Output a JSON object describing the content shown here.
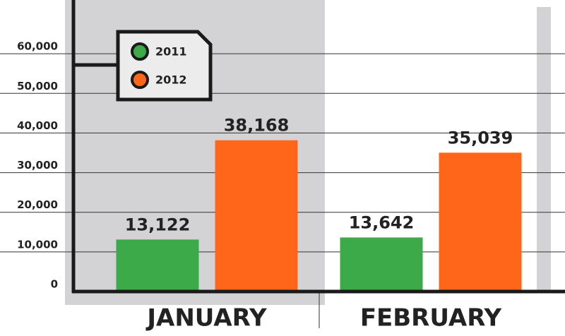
{
  "chart_data": {
    "type": "bar",
    "categories": [
      "JANUARY",
      "FEBRUARY"
    ],
    "series": [
      {
        "name": "2011",
        "color": "#3daa4a",
        "values": [
          13122,
          13642
        ],
        "value_labels": [
          "13,122",
          "13,642"
        ]
      },
      {
        "name": "2012",
        "color": "#ff661a",
        "values": [
          38168,
          35039
        ],
        "value_labels": [
          "38,168",
          "35,039"
        ]
      }
    ],
    "ylim": [
      0,
      70000
    ],
    "yticks": [
      0,
      {
        "value": 10000,
        "label": "10,000"
      },
      {
        "value": 20000,
        "label": "20,000"
      },
      {
        "value": 30000,
        "label": "30,000"
      },
      {
        "value": 40000,
        "label": "40,000"
      },
      {
        "value": 50000,
        "label": "50,000"
      },
      {
        "value": 60000,
        "label": "60,000"
      }
    ],
    "grid": true,
    "legend": "upper left"
  }
}
